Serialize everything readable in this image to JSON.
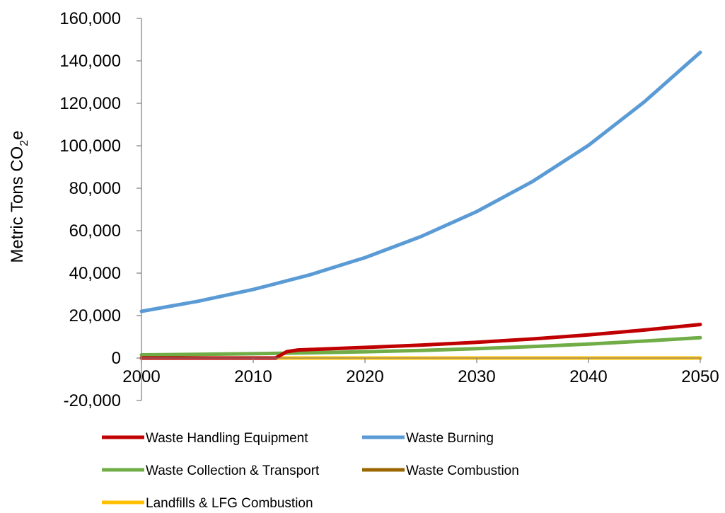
{
  "chart_data": {
    "type": "line",
    "title": "",
    "xlabel": "",
    "ylabel": {
      "prefix": "Metric Tons CO",
      "subscript": "2",
      "suffix": "e"
    },
    "xlim": [
      2000,
      2050
    ],
    "ylim": [
      -20000,
      160000
    ],
    "x_ticks": [
      2000,
      2010,
      2020,
      2030,
      2040,
      2050
    ],
    "x_tick_labels": [
      "2000",
      "2010",
      "2020",
      "2030",
      "2040",
      "2050"
    ],
    "y_ticks": [
      160000,
      140000,
      120000,
      100000,
      80000,
      60000,
      40000,
      20000,
      0,
      -20000
    ],
    "y_tick_labels": [
      "160,000",
      "140,000",
      "120,000",
      "100,000",
      "80,000",
      "60,000",
      "40,000",
      "20,000",
      "0",
      "-20,000"
    ],
    "grid": false,
    "legend_position": "bottom",
    "series": [
      {
        "name": "Waste Handling Equipment",
        "color": "#C00000",
        "x": [
          2000,
          2005,
          2010,
          2011,
          2012,
          2013,
          2014,
          2015,
          2020,
          2025,
          2030,
          2035,
          2040,
          2045,
          2050
        ],
        "y": [
          0,
          0,
          0,
          0,
          0,
          3000,
          3800,
          4000,
          5000,
          6100,
          7400,
          9000,
          10900,
          13200,
          15800
        ]
      },
      {
        "name": "Waste Burning",
        "color": "#5B9BD5",
        "x": [
          2000,
          2005,
          2010,
          2015,
          2020,
          2025,
          2030,
          2035,
          2040,
          2045,
          2050
        ],
        "y": [
          22000,
          26700,
          32300,
          39100,
          47300,
          57200,
          69000,
          83200,
          100200,
          120700,
          144000
        ]
      },
      {
        "name": "Waste Collection & Transport",
        "color": "#70AD47",
        "x": [
          2000,
          2005,
          2010,
          2015,
          2020,
          2025,
          2030,
          2035,
          2040,
          2045,
          2050
        ],
        "y": [
          1500,
          1750,
          2050,
          2450,
          2950,
          3600,
          4400,
          5400,
          6600,
          8000,
          9600
        ]
      },
      {
        "name": "Waste Combustion",
        "color": "#996600",
        "x": [
          2000,
          2050
        ],
        "y": [
          0,
          0
        ]
      },
      {
        "name": "Landfills & LFG Combustion",
        "color": "#FFC000",
        "x": [
          2000,
          2050
        ],
        "y": [
          0,
          0
        ]
      }
    ]
  }
}
